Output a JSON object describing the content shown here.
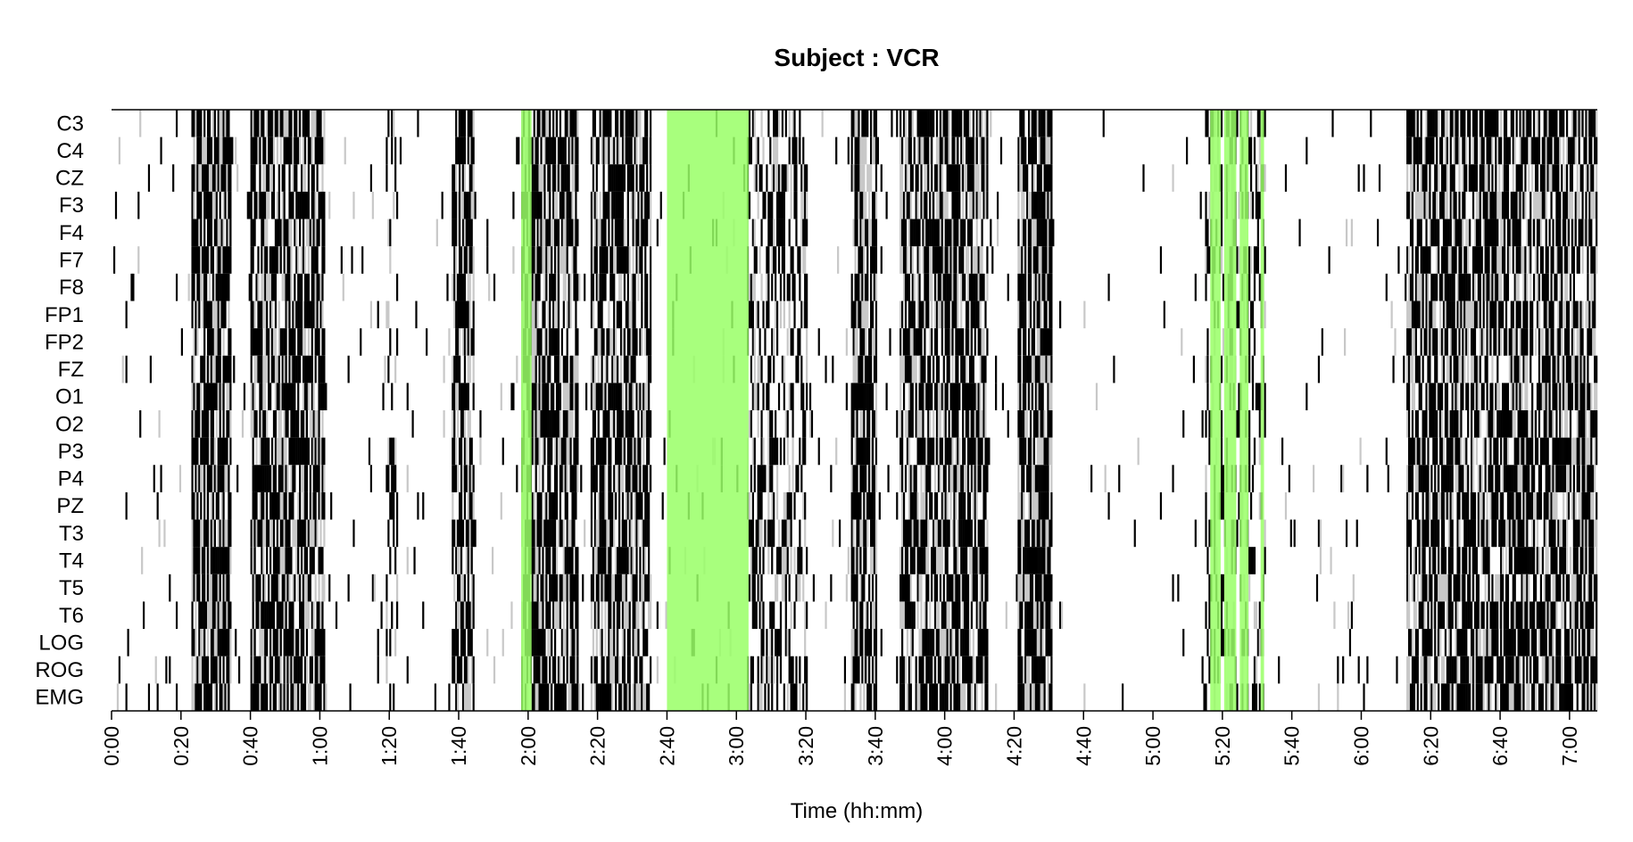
{
  "chart_data": {
    "type": "heatmap",
    "title": "Subject : VCR",
    "xlabel": "Time (hh:mm)",
    "ylabel": "",
    "x_unit": "minutes since recording start",
    "xlim_minutes": [
      0,
      428
    ],
    "x_tick_labels": [
      "0:00",
      "0:20",
      "0:40",
      "1:00",
      "1:20",
      "1:40",
      "2:00",
      "2:20",
      "2:40",
      "3:00",
      "3:20",
      "3:40",
      "4:00",
      "4:20",
      "4:40",
      "5:00",
      "5:20",
      "5:40",
      "6:00",
      "6:20",
      "6:40",
      "7:00"
    ],
    "x_tick_minutes": [
      0,
      20,
      40,
      60,
      80,
      100,
      120,
      140,
      160,
      180,
      200,
      220,
      240,
      260,
      280,
      300,
      320,
      340,
      360,
      380,
      400,
      420
    ],
    "channels": [
      "C3",
      "C4",
      "CZ",
      "F3",
      "F4",
      "F7",
      "F8",
      "FP1",
      "FP2",
      "FZ",
      "O1",
      "O2",
      "P3",
      "P4",
      "PZ",
      "T3",
      "T4",
      "T5",
      "T6",
      "LOG",
      "ROG",
      "EMG"
    ],
    "grid": false,
    "legend": "none",
    "colors": {
      "low": "#ffffff",
      "mid": "#c8c8c8",
      "high": "#000000",
      "highlight": "#99ff66",
      "axis": "#000000"
    },
    "highlight_intervals_minutes": [
      [
        118,
        121
      ],
      [
        160,
        183.5
      ],
      [
        316.5,
        319.5
      ],
      [
        320.5,
        324
      ],
      [
        325,
        327.5
      ],
      [
        331,
        332
      ]
    ],
    "activity_bursts_minutes": [
      [
        23,
        34,
        0.85
      ],
      [
        40,
        61,
        0.8
      ],
      [
        79,
        82,
        0.3
      ],
      [
        98,
        104,
        0.75
      ],
      [
        118,
        134,
        0.8
      ],
      [
        138,
        155,
        0.75
      ],
      [
        183,
        200,
        0.5
      ],
      [
        213,
        220,
        0.8
      ],
      [
        227,
        252,
        0.8
      ],
      [
        261,
        271,
        0.9
      ],
      [
        315,
        332,
        0.35
      ],
      [
        373,
        428,
        0.75
      ]
    ],
    "quiet_intervals_minutes": [
      [
        271,
        305
      ]
    ]
  }
}
